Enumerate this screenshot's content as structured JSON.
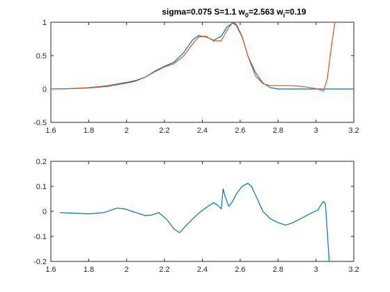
{
  "chart_data": [
    {
      "type": "line",
      "title": {
        "prefix": "sigma=0.075 S=1.1 w",
        "sub1": "0",
        "middle": "=2.563 w",
        "sub2": "i",
        "suffix": "=0.19"
      },
      "xlabel": "",
      "ylabel": "",
      "xlim": [
        1.6,
        3.2
      ],
      "ylim": [
        -0.5,
        1
      ],
      "xticks": [
        1.6,
        1.8,
        2,
        2.2,
        2.4,
        2.6,
        2.8,
        3,
        3.2
      ],
      "xtick_labels": [
        "1.6",
        "1.8",
        "2",
        "2.2",
        "2.4",
        "2.6",
        "2.8",
        "3",
        "3.2"
      ],
      "yticks": [
        -0.5,
        0,
        0.5,
        1
      ],
      "ytick_labels": [
        "-0.5",
        "0",
        "0.5",
        "1"
      ],
      "grid": false,
      "legend": "none",
      "series": [
        {
          "color": "#0072BD",
          "x": [
            1.6,
            1.7,
            1.8,
            1.9,
            2.0,
            2.05,
            2.1,
            2.15,
            2.2,
            2.25,
            2.3,
            2.35,
            2.38,
            2.42,
            2.46,
            2.5,
            2.53,
            2.56,
            2.58,
            2.61,
            2.64,
            2.68,
            2.72,
            2.76,
            2.8,
            2.9,
            3.0,
            3.1,
            3.2
          ],
          "y": [
            0.0,
            0.005,
            0.015,
            0.04,
            0.09,
            0.12,
            0.18,
            0.27,
            0.34,
            0.4,
            0.54,
            0.74,
            0.8,
            0.78,
            0.73,
            0.79,
            0.93,
            0.99,
            0.95,
            0.78,
            0.5,
            0.25,
            0.09,
            0.02,
            0.0,
            0.0,
            0.0,
            0.0,
            0.0
          ]
        },
        {
          "color": "#D95319",
          "x": [
            1.6,
            1.7,
            1.8,
            1.9,
            2.0,
            2.05,
            2.1,
            2.15,
            2.2,
            2.25,
            2.3,
            2.35,
            2.38,
            2.42,
            2.46,
            2.5,
            2.53,
            2.56,
            2.58,
            2.61,
            2.64,
            2.68,
            2.72,
            2.76,
            2.8,
            2.86,
            2.92,
            2.97,
            3.01,
            3.03,
            3.04,
            3.06,
            3.08,
            3.1
          ],
          "y": [
            0.0,
            0.005,
            0.02,
            0.05,
            0.1,
            0.13,
            0.18,
            0.26,
            0.33,
            0.38,
            0.49,
            0.68,
            0.78,
            0.79,
            0.72,
            0.72,
            0.88,
            1.0,
            0.97,
            0.79,
            0.5,
            0.2,
            0.08,
            0.05,
            0.05,
            0.05,
            0.04,
            0.02,
            0.0,
            -0.02,
            -0.03,
            0.15,
            0.6,
            1.0
          ]
        }
      ]
    },
    {
      "type": "line",
      "title": "",
      "xlabel": "",
      "ylabel": "",
      "xlim": [
        1.6,
        3.2
      ],
      "ylim": [
        -0.2,
        0.2
      ],
      "xticks": [
        1.6,
        1.8,
        2,
        2.2,
        2.4,
        2.6,
        2.8,
        3,
        3.2
      ],
      "xtick_labels": [
        "1.6",
        "1.8",
        "2",
        "2.2",
        "2.4",
        "2.6",
        "2.8",
        "3",
        "3.2"
      ],
      "yticks": [
        -0.2,
        -0.1,
        0,
        0.1,
        0.2
      ],
      "ytick_labels": [
        "-0.2",
        "-0.1",
        "0",
        "0.1",
        "0.2"
      ],
      "grid": false,
      "legend": "none",
      "series": [
        {
          "color": "#0072BD",
          "x": [
            1.65,
            1.72,
            1.8,
            1.88,
            1.95,
            1.99,
            2.03,
            2.07,
            2.1,
            2.13,
            2.17,
            2.21,
            2.25,
            2.28,
            2.31,
            2.35,
            2.38,
            2.42,
            2.46,
            2.48,
            2.5,
            2.51,
            2.52,
            2.54,
            2.56,
            2.58,
            2.61,
            2.64,
            2.66,
            2.69,
            2.72,
            2.76,
            2.8,
            2.84,
            2.88,
            2.93,
            2.98,
            3.01,
            3.03,
            3.04,
            3.05,
            3.06,
            3.07
          ],
          "y": [
            -0.005,
            -0.007,
            -0.01,
            -0.005,
            0.013,
            0.01,
            0.0,
            -0.01,
            -0.017,
            -0.015,
            -0.005,
            -0.03,
            -0.07,
            -0.085,
            -0.06,
            -0.03,
            -0.008,
            0.015,
            0.035,
            0.025,
            0.01,
            0.09,
            0.06,
            0.02,
            0.04,
            0.07,
            0.1,
            0.112,
            0.1,
            0.05,
            0.0,
            -0.03,
            -0.045,
            -0.055,
            -0.045,
            -0.025,
            -0.005,
            0.005,
            0.03,
            0.04,
            0.03,
            -0.08,
            -0.2
          ]
        }
      ]
    }
  ]
}
